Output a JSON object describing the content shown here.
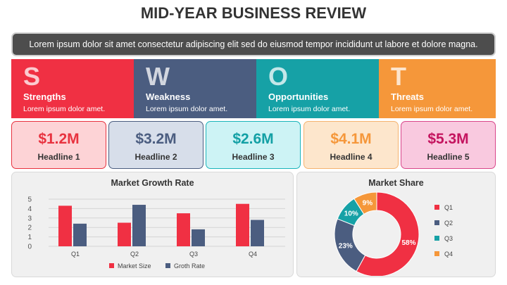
{
  "title": "MID-YEAR BUSINESS REVIEW",
  "banner": "Lorem ipsum dolor sit amet consectetur adipiscing elit sed do eiusmod tempor incididunt ut labore et dolore magna.",
  "swot": [
    {
      "letter": "S",
      "name": "Strengths",
      "desc": "Lorem ipsum dolor amet.",
      "color": "#f03043"
    },
    {
      "letter": "W",
      "name": "Weakness",
      "desc": "Lorem ipsum dolor amet.",
      "color": "#4b5d80"
    },
    {
      "letter": "O",
      "name": "Opportunities",
      "desc": "Lorem ipsum dolor amet.",
      "color": "#16a1a6"
    },
    {
      "letter": "T",
      "name": "Threats",
      "desc": "Lorem ipsum dolor amet.",
      "color": "#f5973a"
    }
  ],
  "kpis": [
    {
      "value": "$1.2M",
      "label": "Headline 1",
      "color": "#e8323f",
      "bg": "#fdd3d6",
      "border": "#e8323f"
    },
    {
      "value": "$3.2M",
      "label": "Headline 2",
      "color": "#4b5d80",
      "bg": "#d7deea",
      "border": "#4b5d80"
    },
    {
      "value": "$2.6M",
      "label": "Headline 3",
      "color": "#13a0a5",
      "bg": "#cdf3f5",
      "border": "#1ab4ba"
    },
    {
      "value": "$4.1M",
      "label": "Headline 4",
      "color": "#f5973a",
      "bg": "#fde6cc",
      "border": "#f5b36f"
    },
    {
      "value": "$5.3M",
      "label": "Headline 5",
      "color": "#c4145f",
      "bg": "#f9c9df",
      "border": "#d9468a"
    }
  ],
  "chart_data": [
    {
      "type": "bar",
      "title": "Market Growth Rate",
      "categories": [
        "Q1",
        "Q2",
        "Q3",
        "Q4"
      ],
      "ylim": [
        0,
        5
      ],
      "yticks": [
        0,
        1,
        2,
        3,
        4,
        5
      ],
      "grid": true,
      "legend": "bottom",
      "series": [
        {
          "name": "Market Size",
          "values": [
            4.3,
            2.5,
            3.5,
            4.5
          ],
          "color": "#f03043"
        },
        {
          "name": "Groth Rate",
          "values": [
            2.4,
            4.4,
            1.8,
            2.8
          ],
          "color": "#4b5d80"
        }
      ]
    },
    {
      "type": "pie",
      "title": "Market Share",
      "donut": true,
      "legend": "right",
      "slices": [
        {
          "label": "Q1",
          "value": 58,
          "text": "58%",
          "color": "#f03043"
        },
        {
          "label": "Q2",
          "value": 23,
          "text": "23%",
          "color": "#4b5d80"
        },
        {
          "label": "Q3",
          "value": 10,
          "text": "10%",
          "color": "#16a1a6"
        },
        {
          "label": "Q4",
          "value": 9,
          "text": "9%",
          "color": "#f5973a"
        }
      ]
    }
  ]
}
